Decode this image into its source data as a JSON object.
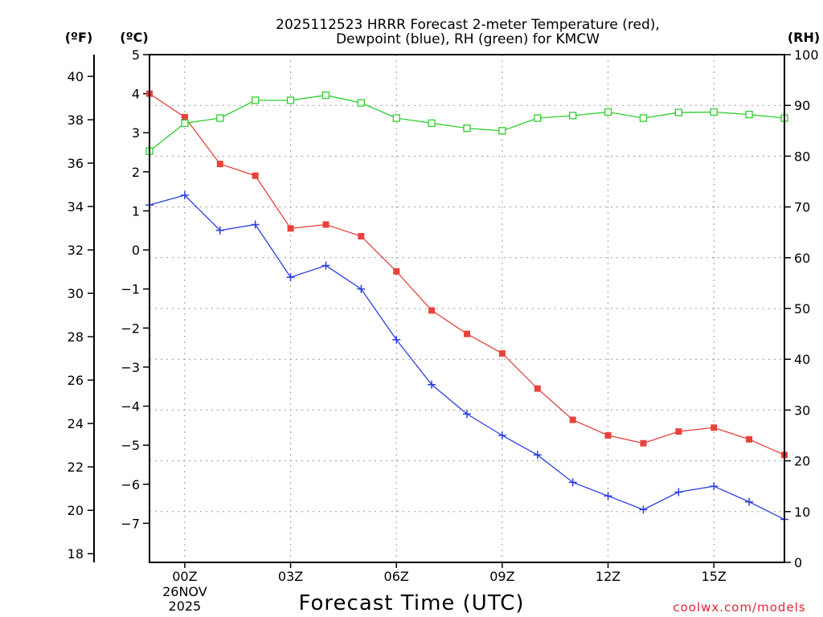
{
  "title_line1": "2025112523 HRRR Forecast 2-meter Temperature (red),",
  "title_line2": "Dewpoint (blue), RH (green) for KMCW",
  "unit_f": "(ºF)",
  "unit_c": "(ºC)",
  "unit_rh": "(RH)",
  "credit": "coolwx.com/models",
  "colors": {
    "temperature": "#e8413c",
    "dewpoint": "#2b3fe0",
    "rh": "#2bd02b"
  },
  "chart_data": {
    "type": "line",
    "title": "2025112523 HRRR Forecast 2-meter Temperature (red), Dewpoint (blue), RH (green) for KMCW",
    "xlabel": "Forecast Time (UTC)",
    "x_hours": [
      -1,
      0,
      1,
      2,
      3,
      4,
      5,
      6,
      7,
      8,
      9,
      10,
      11,
      12,
      13,
      14,
      15,
      16,
      17
    ],
    "x_range": [
      -1,
      17
    ],
    "x_ticks": [
      {
        "hour": 0,
        "label": "00Z",
        "sub1": "26NOV",
        "sub2": "2025"
      },
      {
        "hour": 3,
        "label": "03Z"
      },
      {
        "hour": 6,
        "label": "06Z"
      },
      {
        "hour": 9,
        "label": "09Z"
      },
      {
        "hour": 12,
        "label": "12Z"
      },
      {
        "hour": 15,
        "label": "15Z"
      }
    ],
    "y_celsius": {
      "range": [
        -8,
        5
      ],
      "ticks": [
        "5",
        "4",
        "3",
        "2",
        "1",
        "0",
        "−1",
        "−2",
        "−3",
        "−4",
        "−5",
        "−6",
        "−7"
      ],
      "tick_values": [
        5,
        4,
        3,
        2,
        1,
        0,
        -1,
        -2,
        -3,
        -4,
        -5,
        -6,
        -7
      ]
    },
    "y_fahrenheit": {
      "ticks": [
        "40",
        "38",
        "36",
        "34",
        "32",
        "30",
        "28",
        "26",
        "24",
        "22",
        "20",
        "18"
      ],
      "tick_values": [
        40,
        38,
        36,
        34,
        32,
        30,
        28,
        26,
        24,
        22,
        20,
        18
      ]
    },
    "y_rh": {
      "range": [
        0,
        100
      ],
      "ticks": [
        "100",
        "90",
        "80",
        "70",
        "60",
        "50",
        "40",
        "30",
        "20",
        "10",
        "0"
      ],
      "tick_values": [
        100,
        90,
        80,
        70,
        60,
        50,
        40,
        30,
        20,
        10,
        0
      ]
    },
    "series": [
      {
        "name": "Temperature",
        "axis": "celsius",
        "marker": "filled-square",
        "values": [
          4.0,
          3.4,
          2.2,
          1.9,
          0.55,
          0.65,
          0.35,
          -0.55,
          -1.55,
          -2.15,
          -2.65,
          -3.55,
          -4.35,
          -4.75,
          -4.95,
          -4.65,
          -4.55,
          -4.85,
          -5.25
        ]
      },
      {
        "name": "Dewpoint",
        "axis": "celsius",
        "marker": "plus",
        "values": [
          1.15,
          1.4,
          0.5,
          0.65,
          -0.7,
          -0.4,
          -1.0,
          -2.3,
          -3.45,
          -4.2,
          -4.75,
          -5.25,
          -5.95,
          -6.3,
          -6.65,
          -6.2,
          -6.05,
          -6.45,
          -6.9
        ]
      },
      {
        "name": "RH",
        "axis": "rh",
        "marker": "open-square",
        "values": [
          81,
          86.5,
          87.5,
          91,
          91,
          92,
          90.5,
          87.5,
          86.5,
          85.5,
          85,
          87.5,
          88,
          88.7,
          87.5,
          88.6,
          88.7,
          88.2,
          87.5
        ]
      }
    ]
  }
}
